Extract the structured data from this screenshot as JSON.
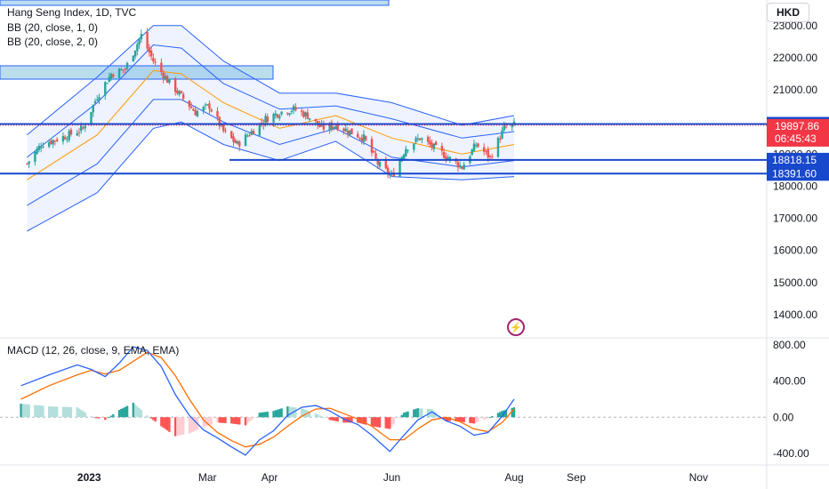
{
  "legend": {
    "symbol": "Hang Seng Index, 1D, TVC",
    "bb1": "BB (20, close, 1, 0)",
    "bb2": "BB (20, close, 2, 0)",
    "macd": "MACD (12, 26, close, 9, EMA, EMA)"
  },
  "currency": "HKD",
  "chart_data": [
    {
      "type": "candlestick",
      "title": "Hang Seng Index, 1D, TVC",
      "ylim": [
        13500,
        23300
      ],
      "y_ticks": [
        "23000.00",
        "22000.00",
        "21000.00",
        "20000.00",
        "19000.00",
        "18000.00",
        "17000.00",
        "16000.00",
        "15000.00",
        "14000.00"
      ],
      "x_ticks": [
        "2023",
        "Mar",
        "Apr",
        "Jun",
        "Aug",
        "Sep",
        "Nov"
      ],
      "close_series": [
        {
          "date": "2022-12-01",
          "value": 18700
        },
        {
          "date": "2022-12-08",
          "value": 19300
        },
        {
          "date": "2022-12-15",
          "value": 19450
        },
        {
          "date": "2022-12-22",
          "value": 19600
        },
        {
          "date": "2022-12-29",
          "value": 19800
        },
        {
          "date": "2023-01-05",
          "value": 20800
        },
        {
          "date": "2023-01-12",
          "value": 21500
        },
        {
          "date": "2023-01-19",
          "value": 21650
        },
        {
          "date": "2023-01-27",
          "value": 22700
        },
        {
          "date": "2023-02-02",
          "value": 21900
        },
        {
          "date": "2023-02-09",
          "value": 21300
        },
        {
          "date": "2023-02-16",
          "value": 20800
        },
        {
          "date": "2023-02-23",
          "value": 20300
        },
        {
          "date": "2023-03-02",
          "value": 20500
        },
        {
          "date": "2023-03-09",
          "value": 19700
        },
        {
          "date": "2023-03-16",
          "value": 19300
        },
        {
          "date": "2023-03-23",
          "value": 19700
        },
        {
          "date": "2023-03-30",
          "value": 20100
        },
        {
          "date": "2023-04-06",
          "value": 20300
        },
        {
          "date": "2023-04-13",
          "value": 20400
        },
        {
          "date": "2023-04-20",
          "value": 20200
        },
        {
          "date": "2023-04-27",
          "value": 19800
        },
        {
          "date": "2023-05-04",
          "value": 19900
        },
        {
          "date": "2023-05-11",
          "value": 19700
        },
        {
          "date": "2023-05-18",
          "value": 19500
        },
        {
          "date": "2023-05-25",
          "value": 18700
        },
        {
          "date": "2023-06-01",
          "value": 18300
        },
        {
          "date": "2023-06-08",
          "value": 19200
        },
        {
          "date": "2023-06-15",
          "value": 19500
        },
        {
          "date": "2023-06-22",
          "value": 19200
        },
        {
          "date": "2023-06-29",
          "value": 18900
        },
        {
          "date": "2023-07-06",
          "value": 18600
        },
        {
          "date": "2023-07-13",
          "value": 19300
        },
        {
          "date": "2023-07-20",
          "value": 18900
        },
        {
          "date": "2023-07-27",
          "value": 19800
        },
        {
          "date": "2023-08-01",
          "value": 19900
        }
      ],
      "bollinger": {
        "basis": [
          {
            "date": "2022-12-01",
            "value": 18200
          },
          {
            "date": "2023-01-05",
            "value": 19600
          },
          {
            "date": "2023-02-02",
            "value": 21600
          },
          {
            "date": "2023-02-16",
            "value": 21500
          },
          {
            "date": "2023-03-09",
            "value": 20600
          },
          {
            "date": "2023-04-06",
            "value": 19800
          },
          {
            "date": "2023-05-04",
            "value": 20200
          },
          {
            "date": "2023-06-01",
            "value": 19500
          },
          {
            "date": "2023-07-06",
            "value": 19000
          },
          {
            "date": "2023-08-01",
            "value": 19300
          }
        ],
        "upper_1": [
          {
            "date": "2022-12-01",
            "value": 18900
          },
          {
            "date": "2023-01-05",
            "value": 20600
          },
          {
            "date": "2023-02-02",
            "value": 22400
          },
          {
            "date": "2023-02-16",
            "value": 22300
          },
          {
            "date": "2023-03-09",
            "value": 21200
          },
          {
            "date": "2023-04-06",
            "value": 20400
          },
          {
            "date": "2023-05-04",
            "value": 20500
          },
          {
            "date": "2023-06-01",
            "value": 20100
          },
          {
            "date": "2023-07-06",
            "value": 19500
          },
          {
            "date": "2023-08-01",
            "value": 19700
          }
        ],
        "lower_1": [
          {
            "date": "2022-12-01",
            "value": 17400
          },
          {
            "date": "2023-01-05",
            "value": 18700
          },
          {
            "date": "2023-02-02",
            "value": 20700
          },
          {
            "date": "2023-02-16",
            "value": 20700
          },
          {
            "date": "2023-03-09",
            "value": 20000
          },
          {
            "date": "2023-04-06",
            "value": 19300
          },
          {
            "date": "2023-05-04",
            "value": 19800
          },
          {
            "date": "2023-06-01",
            "value": 18900
          },
          {
            "date": "2023-07-06",
            "value": 18600
          },
          {
            "date": "2023-08-01",
            "value": 18800
          }
        ],
        "upper_2": [
          {
            "date": "2022-12-01",
            "value": 19600
          },
          {
            "date": "2023-01-05",
            "value": 21400
          },
          {
            "date": "2023-02-02",
            "value": 23000
          },
          {
            "date": "2023-02-16",
            "value": 23000
          },
          {
            "date": "2023-03-09",
            "value": 21900
          },
          {
            "date": "2023-04-06",
            "value": 20900
          },
          {
            "date": "2023-05-04",
            "value": 20900
          },
          {
            "date": "2023-06-01",
            "value": 20600
          },
          {
            "date": "2023-07-06",
            "value": 19900
          },
          {
            "date": "2023-08-01",
            "value": 20200
          }
        ],
        "lower_2": [
          {
            "date": "2022-12-01",
            "value": 16600
          },
          {
            "date": "2023-01-05",
            "value": 17800
          },
          {
            "date": "2023-02-02",
            "value": 19800
          },
          {
            "date": "2023-02-16",
            "value": 20000
          },
          {
            "date": "2023-03-09",
            "value": 19300
          },
          {
            "date": "2023-04-06",
            "value": 18800
          },
          {
            "date": "2023-05-04",
            "value": 19400
          },
          {
            "date": "2023-06-01",
            "value": 18300
          },
          {
            "date": "2023-07-06",
            "value": 18200
          },
          {
            "date": "2023-08-01",
            "value": 18300
          }
        ]
      },
      "horizontal_levels": [
        {
          "value": 19935.72,
          "label": "19935.72",
          "color": "#1848cc"
        },
        {
          "value": 18818.15,
          "label": "18818.15",
          "color": "#1848cc"
        },
        {
          "value": 18391.6,
          "label": "18391.60",
          "color": "#1848cc"
        }
      ],
      "last_price": {
        "value": 19897.86,
        "label": "19897.86",
        "countdown": "06:45:43",
        "color": "#f23645"
      },
      "colors": {
        "up": "#26a69a",
        "down": "#ef5350",
        "bands": "#2962ff",
        "basis": "#ff9800",
        "band_fill": "#2962ff"
      }
    },
    {
      "type": "macd",
      "title": "MACD (12, 26, close, 9, EMA, EMA)",
      "ylim": [
        -520,
        880
      ],
      "y_ticks": [
        "800.00",
        "400.00",
        "0.00",
        "-400.00"
      ],
      "macd_line": [
        {
          "date": "2022-11-28",
          "value": 350
        },
        {
          "date": "2022-12-12",
          "value": 470
        },
        {
          "date": "2022-12-26",
          "value": 580
        },
        {
          "date": "2023-01-02",
          "value": 530
        },
        {
          "date": "2023-01-09",
          "value": 450
        },
        {
          "date": "2023-01-16",
          "value": 600
        },
        {
          "date": "2023-01-23",
          "value": 780
        },
        {
          "date": "2023-01-30",
          "value": 740
        },
        {
          "date": "2023-02-06",
          "value": 560
        },
        {
          "date": "2023-02-13",
          "value": 250
        },
        {
          "date": "2023-02-20",
          "value": 20
        },
        {
          "date": "2023-02-27",
          "value": -140
        },
        {
          "date": "2023-03-06",
          "value": -230
        },
        {
          "date": "2023-03-13",
          "value": -330
        },
        {
          "date": "2023-03-20",
          "value": -420
        },
        {
          "date": "2023-03-27",
          "value": -250
        },
        {
          "date": "2023-04-03",
          "value": -150
        },
        {
          "date": "2023-04-10",
          "value": 20
        },
        {
          "date": "2023-04-17",
          "value": 110
        },
        {
          "date": "2023-04-24",
          "value": 130
        },
        {
          "date": "2023-05-01",
          "value": 70
        },
        {
          "date": "2023-05-08",
          "value": -20
        },
        {
          "date": "2023-05-15",
          "value": -80
        },
        {
          "date": "2023-05-22",
          "value": -200
        },
        {
          "date": "2023-05-31",
          "value": -380
        },
        {
          "date": "2023-06-07",
          "value": -200
        },
        {
          "date": "2023-06-14",
          "value": -30
        },
        {
          "date": "2023-06-21",
          "value": 60
        },
        {
          "date": "2023-06-28",
          "value": -40
        },
        {
          "date": "2023-07-05",
          "value": -100
        },
        {
          "date": "2023-07-12",
          "value": -200
        },
        {
          "date": "2023-07-19",
          "value": -170
        },
        {
          "date": "2023-07-26",
          "value": 10
        },
        {
          "date": "2023-08-01",
          "value": 200
        }
      ],
      "signal_line": [
        {
          "date": "2022-11-28",
          "value": 200
        },
        {
          "date": "2022-12-12",
          "value": 350
        },
        {
          "date": "2022-12-26",
          "value": 470
        },
        {
          "date": "2023-01-02",
          "value": 520
        },
        {
          "date": "2023-01-09",
          "value": 480
        },
        {
          "date": "2023-01-16",
          "value": 520
        },
        {
          "date": "2023-01-23",
          "value": 620
        },
        {
          "date": "2023-01-30",
          "value": 720
        },
        {
          "date": "2023-02-06",
          "value": 660
        },
        {
          "date": "2023-02-13",
          "value": 460
        },
        {
          "date": "2023-02-20",
          "value": 200
        },
        {
          "date": "2023-02-27",
          "value": -30
        },
        {
          "date": "2023-03-06",
          "value": -170
        },
        {
          "date": "2023-03-13",
          "value": -260
        },
        {
          "date": "2023-03-20",
          "value": -330
        },
        {
          "date": "2023-03-27",
          "value": -300
        },
        {
          "date": "2023-04-03",
          "value": -220
        },
        {
          "date": "2023-04-10",
          "value": -100
        },
        {
          "date": "2023-04-17",
          "value": 10
        },
        {
          "date": "2023-04-24",
          "value": 90
        },
        {
          "date": "2023-05-01",
          "value": 100
        },
        {
          "date": "2023-05-08",
          "value": 40
        },
        {
          "date": "2023-05-15",
          "value": -20
        },
        {
          "date": "2023-05-22",
          "value": -100
        },
        {
          "date": "2023-05-31",
          "value": -250
        },
        {
          "date": "2023-06-07",
          "value": -250
        },
        {
          "date": "2023-06-14",
          "value": -130
        },
        {
          "date": "2023-06-21",
          "value": -30
        },
        {
          "date": "2023-06-28",
          "value": 0
        },
        {
          "date": "2023-07-05",
          "value": -50
        },
        {
          "date": "2023-07-12",
          "value": -130
        },
        {
          "date": "2023-07-19",
          "value": -160
        },
        {
          "date": "2023-07-26",
          "value": -60
        },
        {
          "date": "2023-08-01",
          "value": 90
        }
      ],
      "colors": {
        "macd": "#2962ff",
        "signal": "#ff6d00",
        "hist_up": "#26a69a",
        "hist_up_light": "#b2dfdb",
        "hist_down": "#ff5252",
        "hist_down_light": "#ffcdd2"
      }
    }
  ]
}
